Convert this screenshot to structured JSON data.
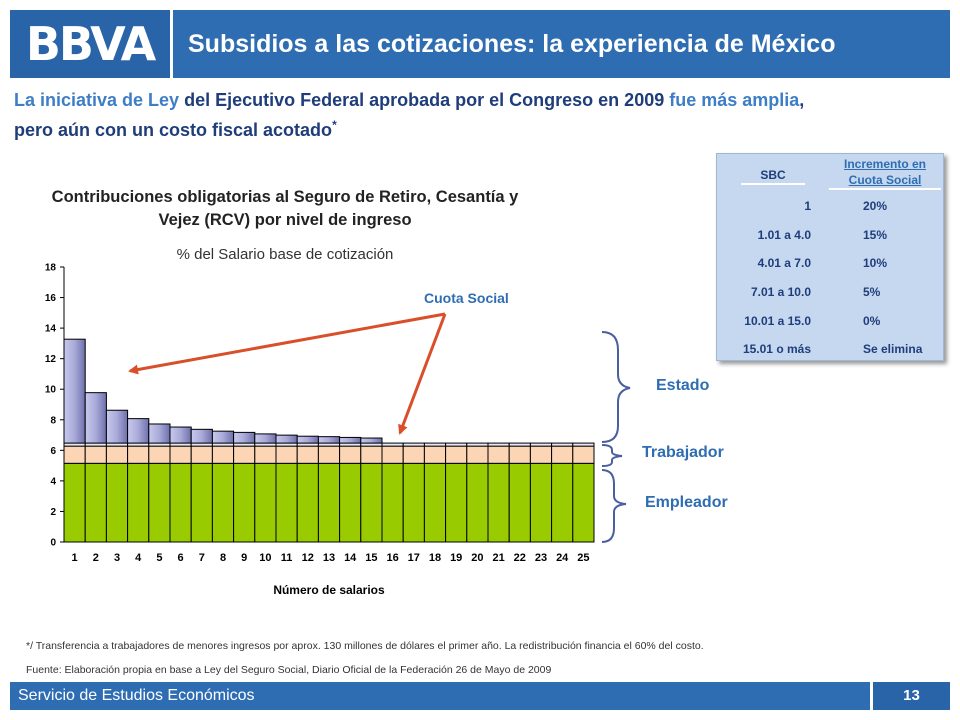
{
  "header": {
    "logo": "BBVA",
    "title": "Subsidios a las cotizaciones: la experiencia de México"
  },
  "subtitle": {
    "p1": "La iniciativa de Ley ",
    "p2": "del Ejecutivo Federal aprobada por el Congreso en 2009 ",
    "p3": "fue más amplia",
    "p4": ",",
    "p5": "pero aún con un costo fiscal acotado",
    "p6": "*"
  },
  "chart_data": {
    "type": "bar",
    "title": "Contribuciones obligatorias al Seguro de Retiro, Cesantía y Vejez (RCV) por nivel de ingreso",
    "subtitle": "% del Salario base de cotización",
    "xlabel": "Número de salarios",
    "ylabel": "",
    "ylim": [
      0,
      18
    ],
    "yticks": [
      0,
      2,
      4,
      6,
      8,
      10,
      12,
      14,
      16,
      18
    ],
    "categories": [
      "1",
      "2",
      "3",
      "4",
      "5",
      "6",
      "7",
      "8",
      "9",
      "10",
      "11",
      "12",
      "13",
      "14",
      "15",
      "16",
      "17",
      "18",
      "19",
      "20",
      "21",
      "22",
      "23",
      "24",
      "25"
    ],
    "stacked": true,
    "series": [
      {
        "name": "Empleador",
        "color": "#99cc00",
        "values": [
          5.15,
          5.15,
          5.15,
          5.15,
          5.15,
          5.15,
          5.15,
          5.15,
          5.15,
          5.15,
          5.15,
          5.15,
          5.15,
          5.15,
          5.15,
          5.15,
          5.15,
          5.15,
          5.15,
          5.15,
          5.15,
          5.15,
          5.15,
          5.15,
          5.15
        ]
      },
      {
        "name": "Trabajador",
        "color": "#fcd5b4",
        "values": [
          1.125,
          1.125,
          1.125,
          1.125,
          1.125,
          1.125,
          1.125,
          1.125,
          1.125,
          1.125,
          1.125,
          1.125,
          1.125,
          1.125,
          1.125,
          1.125,
          1.125,
          1.125,
          1.125,
          1.125,
          1.125,
          1.125,
          1.125,
          1.125,
          1.125
        ]
      },
      {
        "name": "Estado",
        "color": "#e3e6f3",
        "values": [
          0.2,
          0.2,
          0.2,
          0.2,
          0.2,
          0.2,
          0.2,
          0.2,
          0.2,
          0.2,
          0.2,
          0.2,
          0.2,
          0.2,
          0.2,
          0.2,
          0.2,
          0.2,
          0.2,
          0.2,
          0.2,
          0.2,
          0.2,
          0.2,
          0.2
        ]
      },
      {
        "name": "Cuota Social",
        "color": "#a9aad8",
        "values": [
          6.8,
          3.3,
          2.15,
          1.6,
          1.25,
          1.05,
          0.9,
          0.78,
          0.7,
          0.6,
          0.52,
          0.45,
          0.42,
          0.37,
          0.33,
          0,
          0,
          0,
          0,
          0,
          0,
          0,
          0,
          0,
          0
        ]
      }
    ],
    "annotations": [
      "Cuota Social",
      "Estado",
      "Trabajador",
      "Empleador"
    ]
  },
  "table": {
    "col1": "SBC",
    "col2": "Incremento en Cuota Social",
    "rows": [
      {
        "sbc": "1",
        "inc": "20%"
      },
      {
        "sbc": "1.01 a 4.0",
        "inc": "15%"
      },
      {
        "sbc": "4.01 a 7.0",
        "inc": "10%"
      },
      {
        "sbc": "7.01 a 10.0",
        "inc": "5%"
      },
      {
        "sbc": "10.01 a 15.0",
        "inc": "0%"
      },
      {
        "sbc": "15.01 o más",
        "inc": "Se elimina"
      }
    ]
  },
  "footnote": "*/ Transferencia a trabajadores de menores ingresos por aprox. 130 millones de dólares el primer año. La redistribución financia el 60% del costo.",
  "source": "Fuente: Elaboración propia en base a Ley del Seguro Social, Diario Oficial de la Federación 26 de Mayo de 2009",
  "footer": {
    "text": "Servicio de Estudios Económicos",
    "page": "13"
  },
  "colors": {
    "brand": "#2f6db3",
    "dark_blue": "#1f3d7a",
    "arrow": "#d94f2a"
  }
}
